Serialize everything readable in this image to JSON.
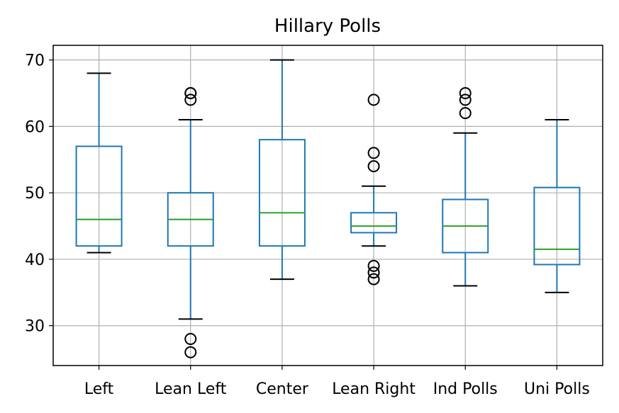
{
  "chart_data": {
    "type": "box",
    "title": "Hillary Polls",
    "xlabel": "",
    "ylabel": "",
    "ylim": [
      24,
      72.2
    ],
    "yticks": [
      30,
      40,
      50,
      60,
      70
    ],
    "grid": true,
    "categories": [
      "Left",
      "Lean Left",
      "Center",
      "Lean Right",
      "Ind Polls",
      "Uni Polls"
    ],
    "boxes": [
      {
        "category": "Left",
        "whisker_low": 41,
        "q1": 42,
        "median": 46,
        "q3": 57,
        "whisker_high": 68,
        "outliers": []
      },
      {
        "category": "Lean Left",
        "whisker_low": 31,
        "q1": 42,
        "median": 46,
        "q3": 50,
        "whisker_high": 61,
        "outliers": [
          26,
          28,
          64,
          65,
          65
        ]
      },
      {
        "category": "Center",
        "whisker_low": 37,
        "q1": 42,
        "median": 47,
        "q3": 58,
        "whisker_high": 70,
        "outliers": []
      },
      {
        "category": "Lean Right",
        "whisker_low": 42,
        "q1": 44,
        "median": 45,
        "q3": 47,
        "whisker_high": 51,
        "outliers": [
          37,
          38,
          39,
          54,
          56,
          64
        ]
      },
      {
        "category": "Ind Polls",
        "whisker_low": 36,
        "q1": 41,
        "median": 45,
        "q3": 49,
        "whisker_high": 59,
        "outliers": [
          62,
          64,
          65
        ]
      },
      {
        "category": "Uni Polls",
        "whisker_low": 35,
        "q1": 39.2,
        "median": 41.5,
        "q3": 50.8,
        "whisker_high": 61,
        "outliers": []
      }
    ],
    "colors": {
      "box": "#1f77b4",
      "median": "#2ca02c",
      "whisker_cap": "#000000",
      "outlier": "#000000",
      "grid": "#b0b0b0"
    }
  }
}
